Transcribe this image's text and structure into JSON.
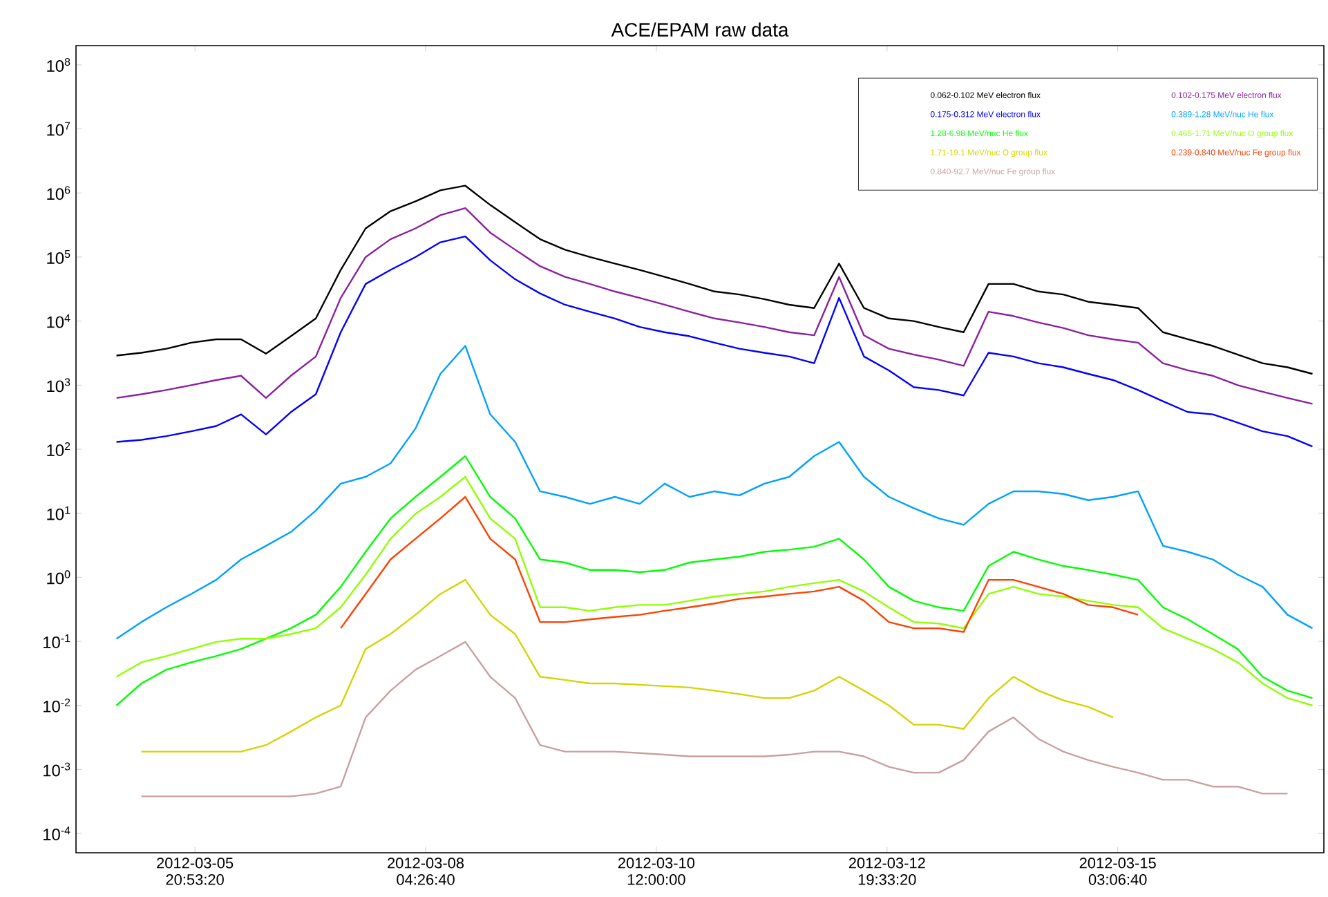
{
  "chart_data": {
    "type": "line",
    "title": "ACE/EPAM raw data",
    "x": [
      "2012-03-05T02:00",
      "2012-03-05T08:00",
      "2012-03-05T14:00",
      "2012-03-05T20:00",
      "2012-03-06T02:00",
      "2012-03-06T08:00",
      "2012-03-06T14:00",
      "2012-03-06T20:00",
      "2012-03-07T02:00",
      "2012-03-07T08:00",
      "2012-03-07T14:00",
      "2012-03-07T20:00",
      "2012-03-08T02:00",
      "2012-03-08T08:00",
      "2012-03-08T14:00",
      "2012-03-08T20:00",
      "2012-03-09T02:00",
      "2012-03-09T08:00",
      "2012-03-09T14:00",
      "2012-03-09T20:00",
      "2012-03-10T02:00",
      "2012-03-10T08:00",
      "2012-03-10T14:00",
      "2012-03-10T20:00",
      "2012-03-11T02:00",
      "2012-03-11T08:00",
      "2012-03-11T14:00",
      "2012-03-11T20:00",
      "2012-03-12T02:00",
      "2012-03-12T08:00",
      "2012-03-12T14:00",
      "2012-03-12T20:00",
      "2012-03-13T02:00",
      "2012-03-13T08:00",
      "2012-03-13T14:00",
      "2012-03-13T20:00",
      "2012-03-14T02:00",
      "2012-03-14T08:00",
      "2012-03-14T14:00",
      "2012-03-14T20:00",
      "2012-03-15T02:00",
      "2012-03-15T08:00",
      "2012-03-15T14:00",
      "2012-03-15T20:00",
      "2012-03-16T02:00",
      "2012-03-16T08:00",
      "2012-03-16T14:00",
      "2012-03-16T20:00",
      "2012-03-17T02:00"
    ],
    "series": [
      {
        "name": "0.062-0.102 MeV electron flux",
        "color": "#000000",
        "values": [
          2900,
          3200,
          3700,
          4600,
          5200,
          5200,
          3100,
          5800,
          11000,
          63000,
          280000,
          520000,
          740000,
          1100000,
          1300000,
          650000,
          350000,
          190000,
          130000,
          100000,
          79000,
          63000,
          49000,
          38000,
          29000,
          26000,
          22000,
          18000,
          16000,
          79000,
          16000,
          11000,
          10000,
          8100,
          6700,
          38000,
          38000,
          29000,
          26000,
          20000,
          18000,
          16000,
          6700,
          5200,
          4100,
          3000,
          2200,
          1900,
          1500
        ]
      },
      {
        "name": "0.102-0.175 MeV electron flux",
        "color": "#8a1fa0",
        "values": [
          630,
          720,
          840,
          1000,
          1200,
          1400,
          630,
          1400,
          2800,
          23000,
          100000,
          190000,
          280000,
          450000,
          580000,
          240000,
          130000,
          72000,
          49000,
          38000,
          29000,
          23000,
          18000,
          14000,
          11000,
          9500,
          8100,
          6700,
          6000,
          49000,
          6000,
          3700,
          3000,
          2500,
          2000,
          14000,
          12000,
          9500,
          7800,
          6000,
          5200,
          4600,
          2200,
          1700,
          1400,
          1000,
          790,
          630,
          510
        ]
      },
      {
        "name": "0.175-0.312 MeV electron flux",
        "color": "#0000ff",
        "values": [
          130,
          140,
          160,
          190,
          230,
          350,
          170,
          380,
          720,
          6700,
          38000,
          63000,
          100000,
          170000,
          210000,
          89000,
          45000,
          27000,
          18000,
          14000,
          11000,
          8100,
          6700,
          5800,
          4600,
          3700,
          3200,
          2800,
          2200,
          23000,
          2800,
          1700,
          930,
          840,
          690,
          3200,
          2800,
          2200,
          1900,
          1500,
          1200,
          840,
          560,
          380,
          350,
          260,
          190,
          160,
          110
        ]
      },
      {
        "name": "0.389-1.28 MeV/nuc He flux",
        "color": "#00a0ff",
        "values": [
          0.11,
          0.2,
          0.34,
          0.55,
          0.91,
          1.9,
          3.1,
          5.1,
          11,
          29,
          37,
          60,
          210,
          1500,
          4100,
          350,
          130,
          22,
          18,
          14,
          18,
          14,
          29,
          18,
          22,
          19,
          29,
          37,
          78,
          130,
          37,
          18,
          12,
          8.3,
          6.6,
          14,
          22,
          22,
          20,
          16,
          18,
          22,
          3.1,
          2.5,
          1.9,
          1.1,
          0.71,
          0.26,
          0.16
        ]
      },
      {
        "name": "1.28-6.98 MeV/nuc He flux",
        "color": "#00ff00",
        "values": [
          0.01,
          0.022,
          0.036,
          0.047,
          0.059,
          0.076,
          0.11,
          0.16,
          0.26,
          0.71,
          2.5,
          8.3,
          18,
          37,
          78,
          18,
          8.3,
          1.9,
          1.7,
          1.3,
          1.3,
          1.2,
          1.3,
          1.7,
          1.9,
          2.1,
          2.5,
          2.7,
          3.0,
          4.0,
          1.9,
          0.71,
          0.43,
          0.34,
          0.3,
          1.5,
          2.5,
          1.9,
          1.5,
          1.3,
          1.1,
          0.91,
          0.34,
          0.22,
          0.13,
          0.076,
          0.028,
          0.017,
          0.013
        ]
      },
      {
        "name": "0.465-1.71 MeV/nuc O group flux",
        "color": "#90ff00",
        "values": [
          0.028,
          0.047,
          0.059,
          0.076,
          0.098,
          0.11,
          0.11,
          0.13,
          0.16,
          0.34,
          1.1,
          4.0,
          9.8,
          18,
          37,
          8.3,
          4.0,
          0.34,
          0.34,
          0.3,
          0.34,
          0.37,
          0.37,
          0.43,
          0.5,
          0.55,
          0.6,
          0.71,
          0.81,
          0.91,
          0.6,
          0.34,
          0.2,
          0.19,
          0.16,
          0.55,
          0.71,
          0.55,
          0.5,
          0.43,
          0.37,
          0.34,
          0.16,
          0.11,
          0.076,
          0.047,
          0.022,
          0.013,
          0.01
        ]
      },
      {
        "name": "1.71-19.1 MeV/nuc O group flux",
        "color": "#d4d400",
        "values": [
          null,
          0.0019,
          0.0019,
          0.0019,
          0.0019,
          0.0019,
          0.0024,
          0.0039,
          0.0065,
          0.01,
          0.076,
          0.13,
          0.26,
          0.55,
          0.91,
          0.26,
          0.13,
          0.028,
          0.025,
          0.022,
          0.022,
          0.021,
          0.02,
          0.019,
          0.017,
          0.015,
          0.013,
          0.013,
          0.017,
          0.028,
          0.017,
          0.01,
          0.005,
          0.005,
          0.0043,
          0.013,
          0.028,
          0.017,
          0.012,
          0.0095,
          0.0065,
          null,
          null,
          null,
          null,
          null,
          null,
          null,
          null
        ]
      },
      {
        "name": "0.239-0.840 MeV/nuc Fe group flux",
        "color": "#ff4000",
        "values": [
          null,
          null,
          null,
          null,
          null,
          null,
          null,
          null,
          null,
          0.16,
          0.55,
          1.9,
          4.0,
          8.3,
          18,
          4.0,
          1.9,
          0.2,
          0.2,
          0.22,
          0.24,
          0.26,
          0.3,
          0.34,
          0.39,
          0.46,
          0.5,
          0.55,
          0.6,
          0.71,
          0.43,
          0.2,
          0.16,
          0.16,
          0.14,
          0.91,
          0.91,
          0.71,
          0.55,
          0.37,
          0.34,
          0.26,
          null,
          null,
          null,
          null,
          null,
          null,
          null
        ]
      },
      {
        "name": "0.840-92.7 MeV/nuc Fe group flux",
        "color": "#c8a0a0",
        "values": [
          null,
          0.00038,
          0.00038,
          0.00038,
          0.00038,
          0.00038,
          0.00038,
          0.00038,
          0.00042,
          0.00054,
          0.0065,
          0.017,
          0.036,
          0.059,
          0.098,
          0.028,
          0.013,
          0.0024,
          0.0019,
          0.0019,
          0.0019,
          0.0018,
          0.0017,
          0.0016,
          0.0016,
          0.0016,
          0.0016,
          0.0017,
          0.0019,
          0.0019,
          0.0016,
          0.0011,
          0.00089,
          0.00089,
          0.0014,
          0.0039,
          0.0065,
          0.003,
          0.0019,
          0.0014,
          0.0011,
          0.00089,
          0.00069,
          0.00069,
          0.00054,
          0.00054,
          0.00042,
          0.00042,
          null
        ]
      }
    ],
    "log": "y",
    "legend": "top right",
    "marker": "none",
    "line_style": "solid",
    "xlim": [
      "2012-03-04T16:15",
      "2012-03-17T04:45"
    ],
    "xticks": [
      {
        "value": "2012-03-05T20:53:20",
        "label": "2012-03-05 20:53:20"
      },
      {
        "value": "2012-03-08T04:26:40",
        "label": "2012-03-08 04:26:40"
      },
      {
        "value": "2012-03-10T12:00:00",
        "label": "2012-03-10 12:00:00"
      },
      {
        "value": "2012-03-12T19:33:20",
        "label": "2012-03-12 19:33:20"
      },
      {
        "value": "2012-03-15T03:06:40",
        "label": "2012-03-15 03:06:40"
      }
    ],
    "ylim": [
      5e-05,
      200000000.0
    ],
    "yticks": [
      {
        "value": 0.0001,
        "label": "10$^{-4}$"
      },
      {
        "value": 0.001,
        "label": "10$^{-3}$"
      },
      {
        "value": 0.01,
        "label": "10$^{-2}$"
      },
      {
        "value": 0.1,
        "label": "10$^{-1}$"
      },
      {
        "value": 1,
        "label": "10$^{0}$"
      },
      {
        "value": 10,
        "label": "10$^{1}$"
      },
      {
        "value": 100,
        "label": "10$^{2}$"
      },
      {
        "value": 1000,
        "label": "10$^{3}$"
      },
      {
        "value": 10000,
        "label": "10$^{4}$"
      },
      {
        "value": 100000,
        "label": "10$^{5}$"
      },
      {
        "value": 1000000,
        "label": "10$^{6}$"
      },
      {
        "value": 10000000,
        "label": "10$^{7}$"
      },
      {
        "value": 100000000,
        "label": "10$^{8}$"
      }
    ]
  }
}
